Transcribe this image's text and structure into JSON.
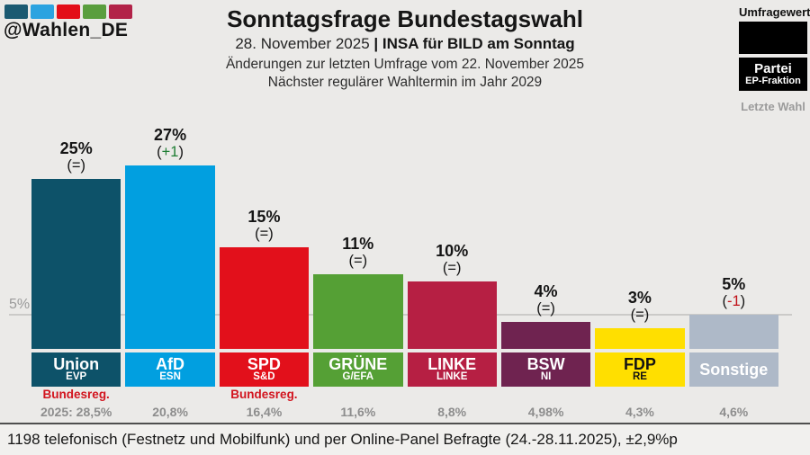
{
  "brand": {
    "handle": "@Wahlen_DE",
    "logo_colors": [
      "#1b5a72",
      "#2ba3e0",
      "#e30e18",
      "#5a9e3d",
      "#b22348"
    ]
  },
  "header": {
    "title": "Sonntagsfrage Bundestagswahl",
    "date": "28. November 2025",
    "source": "| INSA für BILD am Sonntag",
    "change_note": "Änderungen zur letzten Umfrage vom 22. November 2025",
    "next_election": "Nächster regulärer Wahltermin im Jahr 2029"
  },
  "legend": {
    "poll_value_label": "Umfragewert",
    "party_label": "Partei",
    "faction_label": "EP-Fraktion",
    "last_election_label": "Letzte Wahl"
  },
  "chart_data": {
    "type": "bar",
    "title": "Sonntagsfrage Bundestagswahl",
    "threshold": {
      "label": "5%",
      "value": 5
    },
    "categories": [
      "Union",
      "AfD",
      "SPD",
      "GRÜNE",
      "LINKE",
      "BSW",
      "FDP",
      "Sonstige"
    ],
    "values": [
      25,
      27,
      15,
      11,
      10,
      4,
      3,
      5
    ],
    "ylim": [
      0,
      30
    ],
    "grid": "single-threshold-line",
    "legend_position": "top-right",
    "parties": [
      {
        "name": "Union",
        "faction": "EVP",
        "value": 25,
        "value_label": "25%",
        "change": "=",
        "change_color": "#141414",
        "color": "#0d5269",
        "label_text_color": "#ffffff",
        "gov_note": "Bundesreg.",
        "last_election": "2025: 28,5%"
      },
      {
        "name": "AfD",
        "faction": "ESN",
        "value": 27,
        "value_label": "27%",
        "change": "+1",
        "change_color": "#1e7d33",
        "color": "#019fe0",
        "label_text_color": "#ffffff",
        "gov_note": "",
        "last_election": "20,8%"
      },
      {
        "name": "SPD",
        "faction": "S&D",
        "value": 15,
        "value_label": "15%",
        "change": "=",
        "change_color": "#141414",
        "color": "#e2101b",
        "label_text_color": "#ffffff",
        "gov_note": "Bundesreg.",
        "last_election": "16,4%"
      },
      {
        "name": "GRÜNE",
        "faction": "G/EFA",
        "value": 11,
        "value_label": "11%",
        "change": "=",
        "change_color": "#141414",
        "color": "#55a035",
        "label_text_color": "#ffffff",
        "gov_note": "",
        "last_election": "11,6%"
      },
      {
        "name": "LINKE",
        "faction": "LINKE",
        "value": 10,
        "value_label": "10%",
        "change": "=",
        "change_color": "#141414",
        "color": "#b61f43",
        "label_text_color": "#ffffff",
        "gov_note": "",
        "last_election": "8,8%"
      },
      {
        "name": "BSW",
        "faction": "NI",
        "value": 4,
        "value_label": "4%",
        "change": "=",
        "change_color": "#141414",
        "color": "#6f2350",
        "label_text_color": "#ffffff",
        "gov_note": "",
        "last_election": "4,98%"
      },
      {
        "name": "FDP",
        "faction": "RE",
        "value": 3,
        "value_label": "3%",
        "change": "=",
        "change_color": "#141414",
        "color": "#ffdf00",
        "label_text_color": "#131313",
        "gov_note": "",
        "last_election": "4,3%"
      },
      {
        "name": "Sonstige",
        "faction": "",
        "value": 5,
        "value_label": "5%",
        "change": "-1",
        "change_color": "#c01118",
        "color": "#aeb9c8",
        "label_text_color": "#ffffff",
        "gov_note": "",
        "last_election": "4,6%"
      }
    ]
  },
  "footer": {
    "text": "1198 telefonisch (Festnetz und Mobilfunk) und per Online-Panel Befragte (24.-28.11.2025), ±2,9%p"
  }
}
